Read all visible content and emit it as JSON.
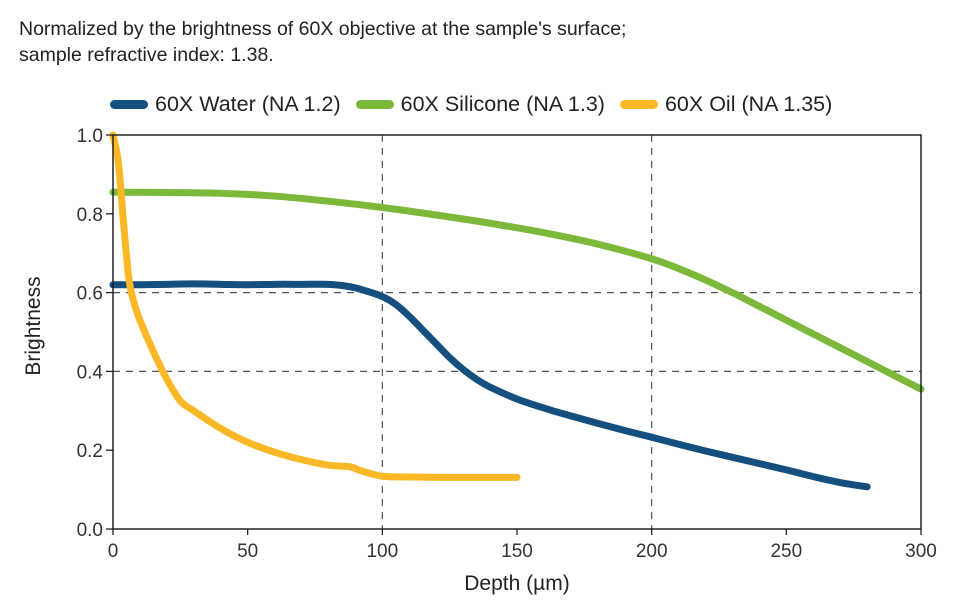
{
  "subtitle": {
    "line1": "Normalized by the brightness of 60X objective at the sample's surface;",
    "line2": "sample refractive index: 1.38."
  },
  "chart_data": {
    "type": "line",
    "title": "Normalized by the brightness of 60X objective at the sample's surface; sample refractive index: 1.38.",
    "xlabel": "Depth (µm)",
    "ylabel": "Brightness",
    "xlim": [
      0,
      300
    ],
    "ylim": [
      0,
      1.0
    ],
    "xticks": [
      0,
      50,
      100,
      150,
      200,
      250,
      300
    ],
    "xtick_labels": [
      "0",
      "50",
      "100",
      "150",
      "200",
      "250",
      "300"
    ],
    "yticks": [
      0.0,
      0.2,
      0.4,
      0.6,
      0.8,
      1.0
    ],
    "ytick_labels": [
      "0.0",
      "0.2",
      "0.4",
      "0.6",
      "0.8",
      "1.0"
    ],
    "grid": {
      "x": [
        100,
        200
      ],
      "y": [
        0.4,
        0.6
      ],
      "style": "dashed"
    },
    "legend_position": "top",
    "series": [
      {
        "name": "60X Water (NA 1.2)",
        "color": "#144f7f",
        "x": [
          0,
          10,
          20,
          30,
          40,
          50,
          60,
          70,
          80,
          85,
          90,
          95,
          100,
          105,
          110,
          115,
          120,
          125,
          130,
          135,
          140,
          150,
          160,
          170,
          180,
          190,
          200,
          210,
          220,
          230,
          240,
          250,
          260,
          270,
          280
        ],
        "y": [
          0.62,
          0.62,
          0.621,
          0.622,
          0.621,
          0.62,
          0.621,
          0.621,
          0.621,
          0.618,
          0.612,
          0.602,
          0.59,
          0.57,
          0.54,
          0.505,
          0.47,
          0.435,
          0.405,
          0.38,
          0.36,
          0.33,
          0.307,
          0.287,
          0.268,
          0.25,
          0.233,
          0.215,
          0.198,
          0.182,
          0.166,
          0.15,
          0.133,
          0.118,
          0.107
        ]
      },
      {
        "name": "60X Silicone (NA 1.3)",
        "color": "#7cb93a",
        "x": [
          0,
          20,
          40,
          60,
          80,
          100,
          120,
          140,
          160,
          180,
          200,
          210,
          220,
          230,
          240,
          250,
          260,
          270,
          280,
          290,
          300
        ],
        "y": [
          0.855,
          0.854,
          0.852,
          0.845,
          0.832,
          0.816,
          0.797,
          0.776,
          0.752,
          0.723,
          0.686,
          0.661,
          0.632,
          0.6,
          0.565,
          0.53,
          0.495,
          0.46,
          0.425,
          0.39,
          0.355
        ]
      },
      {
        "name": "60X Oil (NA 1.35)",
        "color": "#fbb826",
        "x": [
          0,
          2,
          4,
          6,
          8,
          10,
          15,
          20,
          25,
          30,
          40,
          50,
          60,
          70,
          80,
          88,
          92,
          100,
          110,
          120,
          130,
          140,
          150
        ],
        "y": [
          1.0,
          0.93,
          0.77,
          0.63,
          0.57,
          0.53,
          0.45,
          0.38,
          0.325,
          0.3,
          0.255,
          0.22,
          0.195,
          0.176,
          0.162,
          0.158,
          0.148,
          0.134,
          0.132,
          0.131,
          0.131,
          0.131,
          0.131
        ]
      }
    ]
  }
}
